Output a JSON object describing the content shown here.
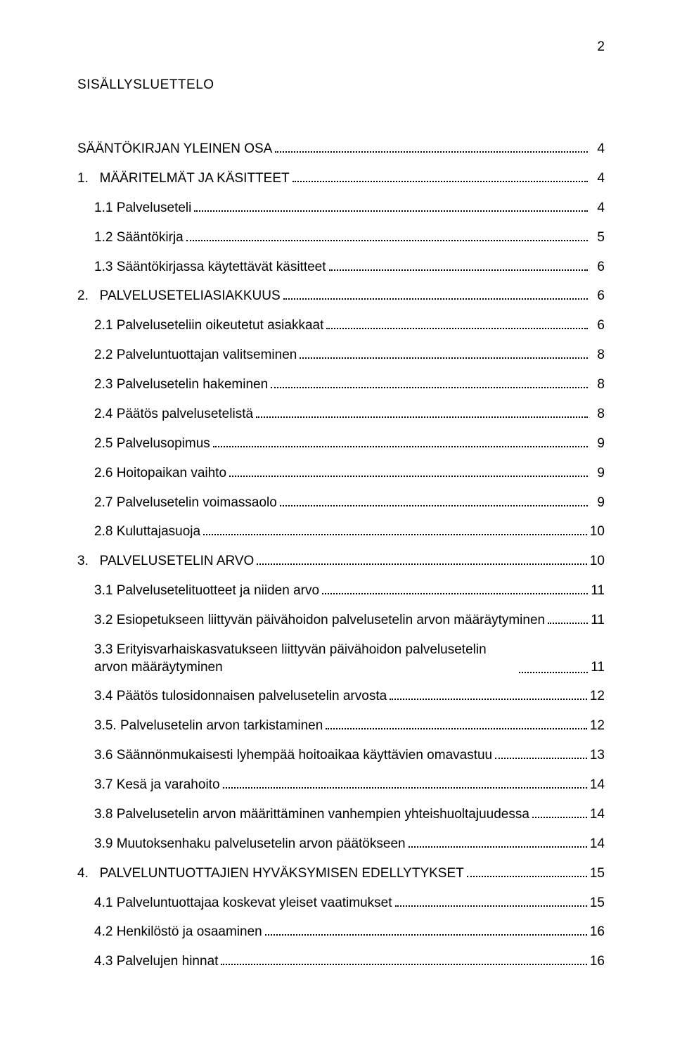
{
  "page_number": "2",
  "title": "SISÄLLYSLUETTELO",
  "text_color": "#000000",
  "bg_color": "#ffffff",
  "leader_color": "#000000",
  "font_size_pt": 14,
  "entries": [
    {
      "label": "SÄÄNTÖKIRJAN YLEINEN OSA",
      "page": "4",
      "indent": 0,
      "gap_before": true
    },
    {
      "label": "1.   MÄÄRITELMÄT JA KÄSITTEET",
      "page": "4",
      "indent": 0,
      "gap_before": true
    },
    {
      "label": "1.1 Palveluseteli",
      "page": "4",
      "indent": 1
    },
    {
      "label": "1.2 Sääntökirja",
      "page": "5",
      "indent": 1
    },
    {
      "label": "1.3 Sääntökirjassa käytettävät käsitteet",
      "page": "6",
      "indent": 1
    },
    {
      "label": "2.   PALVELUSETELIASIAKKUUS",
      "page": "6",
      "indent": 0,
      "gap_before": true
    },
    {
      "label": "2.1 Palveluseteliin oikeutetut asiakkaat",
      "page": "6",
      "indent": 1
    },
    {
      "label": "2.2 Palveluntuottajan valitseminen",
      "page": "8",
      "indent": 1
    },
    {
      "label": "2.3 Palvelusetelin hakeminen",
      "page": "8",
      "indent": 1
    },
    {
      "label": "2.4 Päätös palvelusetelistä",
      "page": "8",
      "indent": 1
    },
    {
      "label": "2.5 Palvelusopimus",
      "page": "9",
      "indent": 1
    },
    {
      "label": "2.6 Hoitopaikan vaihto",
      "page": "9",
      "indent": 1
    },
    {
      "label": "2.7 Palvelusetelin voimassaolo",
      "page": "9",
      "indent": 1
    },
    {
      "label": "2.8 Kuluttajasuoja",
      "page": "10",
      "indent": 1
    },
    {
      "label": "3.   PALVELUSETELIN ARVO",
      "page": "10",
      "indent": 0,
      "gap_before": true
    },
    {
      "label": "3.1 Palvelusetelituotteet ja niiden arvo",
      "page": "11",
      "indent": 1
    },
    {
      "label": "3.2 Esiopetukseen liittyvän päivähoidon palvelusetelin arvon määräytyminen",
      "page": "11",
      "indent": 1
    },
    {
      "label": "3.3 Erityisvarhaiskasvatukseen liittyvän päivähoidon palvelusetelin arvon määräytyminen",
      "page": "11",
      "indent": 1,
      "multiline": true
    },
    {
      "label": "3.4 Päätös tulosidonnaisen palvelusetelin arvosta",
      "page": "12",
      "indent": 1
    },
    {
      "label": "3.5. Palvelusetelin arvon tarkistaminen",
      "page": "12",
      "indent": 1
    },
    {
      "label": "3.6 Säännönmukaisesti lyhempää hoitoaikaa käyttävien omavastuu",
      "page": "13",
      "indent": 1
    },
    {
      "label": "3.7 Kesä ja varahoito",
      "page": "14",
      "indent": 1
    },
    {
      "label": "3.8 Palvelusetelin arvon määrittäminen vanhempien yhteishuoltajuudessa",
      "page": "14",
      "indent": 1
    },
    {
      "label": "3.9 Muutoksenhaku palvelusetelin arvon päätökseen",
      "page": "14",
      "indent": 1
    },
    {
      "label": "4.   PALVELUNTUOTTAJIEN HYVÄKSYMISEN EDELLYTYKSET",
      "page": "15",
      "indent": 0,
      "gap_before": true
    },
    {
      "label": "4.1 Palveluntuottajaa koskevat yleiset vaatimukset",
      "page": "15",
      "indent": 1
    },
    {
      "label": "4.2 Henkilöstö ja osaaminen",
      "page": "16",
      "indent": 1
    },
    {
      "label": "4.3 Palvelujen hinnat",
      "page": "16",
      "indent": 1
    }
  ]
}
